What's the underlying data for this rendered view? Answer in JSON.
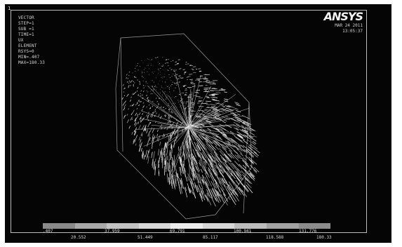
{
  "window": {
    "number": "1",
    "brand": "ANSYS",
    "date": "MAR 24 2011",
    "time": "13:05:37"
  },
  "info": [
    "VECTOR",
    "STEP=1",
    "SUB =1",
    "TIME=1",
    "UX",
    "ELEMENT",
    "RSYS=0",
    "MIN=.407",
    "MAX=180.33"
  ],
  "legend": {
    "colors": [
      "#8a8a8a",
      "#a8a8a8",
      "#c2c2c2",
      "#d8d8d8",
      "#ececec",
      "#d6d6d6",
      "#bcbcbc",
      "#a2a2a2",
      "#8c8c8c"
    ],
    "top_labels": [
      ".407",
      "37.959",
      "69.791",
      "100.941",
      "131.776"
    ],
    "bottom_labels": [
      "20.552",
      "51.449",
      "85.117",
      "118.588",
      "180.33"
    ]
  }
}
